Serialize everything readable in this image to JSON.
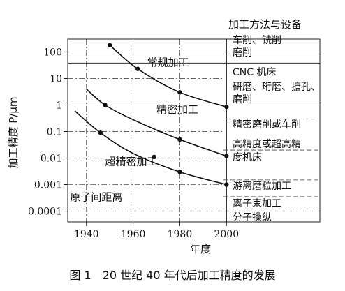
{
  "chart_data": {
    "type": "line",
    "title": "",
    "caption": "图 1　20 世纪 40 年代后加工精度的发展",
    "xlabel": "年度",
    "ylabel": "加工精度 P/μm",
    "x_ticks": [
      "1940",
      "1960",
      "1980",
      "2000"
    ],
    "x_range": [
      1932,
      2040
    ],
    "y_scale": "log",
    "y_ticks": [
      "100",
      "10",
      "1",
      "0.1",
      "0.01",
      "0.001",
      "0.0001"
    ],
    "y_range": [
      5e-05,
      240
    ],
    "series": [
      {
        "name": "常规加工",
        "points": [
          [
            1950,
            180
          ],
          [
            1962,
            23
          ],
          [
            1980,
            3
          ],
          [
            2000,
            0.85
          ]
        ],
        "markers": [
          [
            1950,
            180
          ],
          [
            1962,
            23
          ],
          [
            1980,
            3
          ],
          [
            2000,
            0.85
          ]
        ]
      },
      {
        "name": "精密加工",
        "points": [
          [
            1940,
            4
          ],
          [
            1948,
            1
          ],
          [
            1960,
            0.28
          ],
          [
            1980,
            0.05
          ],
          [
            2000,
            0.012
          ]
        ],
        "markers": [
          [
            1948,
            1
          ],
          [
            1980,
            0.05
          ],
          [
            2000,
            0.012
          ]
        ]
      },
      {
        "name": "超精密加工",
        "points": [
          [
            1935,
            0.6
          ],
          [
            1946,
            0.09
          ],
          [
            1960,
            0.015
          ],
          [
            1980,
            0.003
          ],
          [
            2000,
            0.001
          ]
        ],
        "markers": [
          [
            1946,
            0.09
          ],
          [
            1969,
            0.011
          ],
          [
            1980,
            0.003
          ],
          [
            2000,
            0.001
          ]
        ]
      }
    ],
    "region_labels": [
      {
        "text": "常规加工",
        "x": 1966,
        "y": 30
      },
      {
        "text": "精密加工",
        "x": 1970,
        "y": 0.5
      },
      {
        "text": "超精密加工",
        "x": 1948,
        "y": 0.0055
      },
      {
        "text": "原子间距离",
        "x": 1933,
        "y": 0.00025
      }
    ],
    "reference_lines_y": [
      100,
      38,
      1,
      0.0001
    ],
    "dashed_lines_y": [
      0.0001
    ],
    "legend_title": "加工方法与设备",
    "legend_items": [
      [
        "车削、铣削",
        "磨削"
      ],
      [
        "CNC 机床"
      ],
      [
        "研磨、珩磨、搪孔、",
        "磨削"
      ],
      [
        "精密磨削或车削"
      ],
      [
        "高精度或超高精",
        "度机床"
      ],
      [
        "游离磨粒加工"
      ],
      [
        "离子束加工"
      ],
      [
        "分子操纵"
      ]
    ]
  }
}
